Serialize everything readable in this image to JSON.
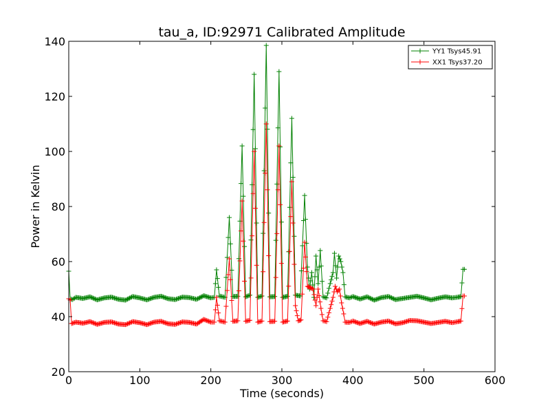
{
  "chart_data": {
    "type": "line",
    "title": "tau_a, ID:92971 Calibrated Amplitude",
    "xlabel": "Time (seconds)",
    "ylabel": "Power in Kelvin",
    "xlim": [
      0,
      600
    ],
    "ylim": [
      20,
      140
    ],
    "xticks": [
      0,
      100,
      200,
      300,
      400,
      500,
      600
    ],
    "yticks": [
      20,
      40,
      60,
      80,
      100,
      120,
      140
    ],
    "grid": false,
    "legend_position": "top-right",
    "marker": "plus",
    "series": [
      {
        "name": "YY1 Tsys45.91",
        "color": "#008000",
        "points": [
          [
            0,
            56.5
          ],
          [
            2,
            46.5
          ],
          [
            5,
            46.2
          ],
          [
            10,
            47.0
          ],
          [
            20,
            46.6
          ],
          [
            30,
            47.2
          ],
          [
            40,
            46.1
          ],
          [
            50,
            46.8
          ],
          [
            60,
            47.1
          ],
          [
            70,
            46.3
          ],
          [
            80,
            46.0
          ],
          [
            90,
            47.3
          ],
          [
            100,
            46.8
          ],
          [
            110,
            46.1
          ],
          [
            120,
            47.0
          ],
          [
            130,
            47.4
          ],
          [
            140,
            46.5
          ],
          [
            150,
            46.2
          ],
          [
            160,
            47.1
          ],
          [
            170,
            46.9
          ],
          [
            180,
            46.3
          ],
          [
            190,
            47.6
          ],
          [
            200,
            46.8
          ],
          [
            205,
            47.0
          ],
          [
            208,
            57.0
          ],
          [
            212,
            47.5
          ],
          [
            220,
            47.0
          ],
          [
            226,
            76.0
          ],
          [
            231,
            47.3
          ],
          [
            238,
            47.4
          ],
          [
            244,
            102.0
          ],
          [
            249,
            47.2
          ],
          [
            255,
            47.8
          ],
          [
            261,
            128.0
          ],
          [
            266,
            47.0
          ],
          [
            272,
            47.5
          ],
          [
            278,
            138.5
          ],
          [
            283,
            47.2
          ],
          [
            290,
            47.3
          ],
          [
            296,
            129.0
          ],
          [
            301,
            47.0
          ],
          [
            308,
            47.4
          ],
          [
            314,
            112.0
          ],
          [
            319,
            47.8
          ],
          [
            326,
            47.5
          ],
          [
            332,
            84.0
          ],
          [
            336,
            58.0
          ],
          [
            339,
            50.0
          ],
          [
            342,
            56.0
          ],
          [
            345,
            47.0
          ],
          [
            348,
            62.0
          ],
          [
            351,
            52.0
          ],
          [
            354,
            64.0
          ],
          [
            358,
            47.2
          ],
          [
            363,
            46.8
          ],
          [
            368,
            52.0
          ],
          [
            372,
            56.0
          ],
          [
            374,
            63.0
          ],
          [
            377,
            54.0
          ],
          [
            380,
            62.0
          ],
          [
            383,
            60.0
          ],
          [
            386,
            56.0
          ],
          [
            389,
            47.2
          ],
          [
            395,
            46.8
          ],
          [
            400,
            47.3
          ],
          [
            410,
            46.4
          ],
          [
            420,
            47.2
          ],
          [
            430,
            46.0
          ],
          [
            440,
            46.9
          ],
          [
            450,
            47.3
          ],
          [
            460,
            46.2
          ],
          [
            470,
            46.6
          ],
          [
            480,
            47.0
          ],
          [
            490,
            47.4
          ],
          [
            500,
            46.8
          ],
          [
            510,
            46.1
          ],
          [
            520,
            46.7
          ],
          [
            530,
            47.2
          ],
          [
            540,
            46.8
          ],
          [
            548,
            47.1
          ],
          [
            552,
            47.3
          ],
          [
            555,
            57.2
          ],
          [
            557,
            57.2
          ]
        ]
      },
      {
        "name": "XX1 Tsys37.20",
        "color": "#ff0000",
        "points": [
          [
            0,
            46.5
          ],
          [
            2,
            46.0
          ],
          [
            4,
            37.5
          ],
          [
            10,
            38.0
          ],
          [
            20,
            37.6
          ],
          [
            30,
            38.2
          ],
          [
            40,
            37.2
          ],
          [
            50,
            37.9
          ],
          [
            60,
            38.1
          ],
          [
            70,
            37.3
          ],
          [
            80,
            37.1
          ],
          [
            90,
            38.2
          ],
          [
            100,
            37.8
          ],
          [
            110,
            37.1
          ],
          [
            120,
            38.0
          ],
          [
            130,
            38.3
          ],
          [
            140,
            37.4
          ],
          [
            150,
            37.2
          ],
          [
            160,
            38.1
          ],
          [
            170,
            37.9
          ],
          [
            180,
            37.3
          ],
          [
            190,
            39.0
          ],
          [
            200,
            38.0
          ],
          [
            205,
            38.0
          ],
          [
            208,
            47.0
          ],
          [
            212,
            38.5
          ],
          [
            220,
            38.0
          ],
          [
            226,
            61.0
          ],
          [
            231,
            38.3
          ],
          [
            238,
            38.5
          ],
          [
            244,
            82.0
          ],
          [
            249,
            38.3
          ],
          [
            255,
            38.7
          ],
          [
            261,
            100.0
          ],
          [
            266,
            38.0
          ],
          [
            272,
            38.4
          ],
          [
            278,
            110.0
          ],
          [
            283,
            38.2
          ],
          [
            290,
            38.3
          ],
          [
            296,
            102.0
          ],
          [
            301,
            38.0
          ],
          [
            308,
            38.4
          ],
          [
            314,
            89.0
          ],
          [
            319,
            44.0
          ],
          [
            323,
            38.5
          ],
          [
            327,
            38.8
          ],
          [
            332,
            67.0
          ],
          [
            336,
            51.0
          ],
          [
            340,
            50.5
          ],
          [
            344,
            50.0
          ],
          [
            348,
            44.0
          ],
          [
            351,
            50.0
          ],
          [
            355,
            43.0
          ],
          [
            358,
            38.5
          ],
          [
            363,
            38.2
          ],
          [
            368,
            43.0
          ],
          [
            372,
            47.0
          ],
          [
            375,
            51.0
          ],
          [
            378,
            49.0
          ],
          [
            381,
            50.0
          ],
          [
            384,
            45.0
          ],
          [
            387,
            41.0
          ],
          [
            389,
            38.0
          ],
          [
            395,
            37.9
          ],
          [
            400,
            38.4
          ],
          [
            410,
            37.5
          ],
          [
            420,
            38.3
          ],
          [
            430,
            37.3
          ],
          [
            440,
            38.0
          ],
          [
            450,
            38.4
          ],
          [
            460,
            37.4
          ],
          [
            470,
            37.8
          ],
          [
            480,
            38.6
          ],
          [
            490,
            38.5
          ],
          [
            500,
            38.0
          ],
          [
            510,
            37.5
          ],
          [
            520,
            37.9
          ],
          [
            530,
            38.3
          ],
          [
            540,
            37.8
          ],
          [
            548,
            38.2
          ],
          [
            552,
            38.4
          ],
          [
            555,
            47.5
          ],
          [
            557,
            47.5
          ]
        ]
      }
    ]
  }
}
